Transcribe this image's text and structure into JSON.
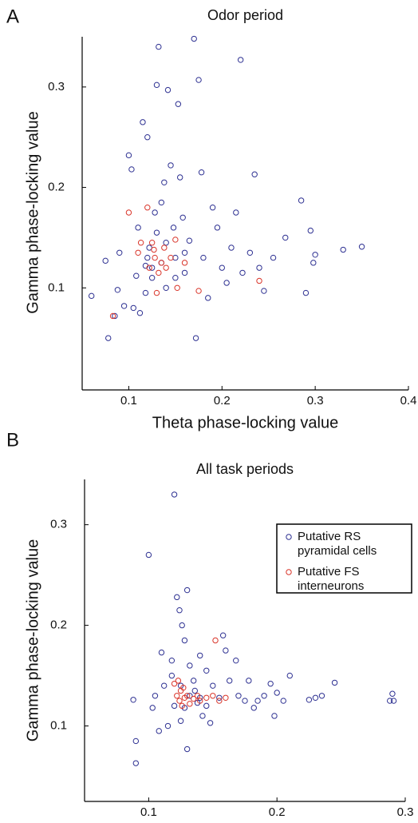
{
  "chart_data": [
    {
      "type": "scatter",
      "panel_label": "A",
      "title": "Odor period",
      "x_label": "Theta phase-locking value",
      "y_label": "Gamma phase-locking value",
      "xlim": [
        0.05,
        0.4
      ],
      "ylim": [
        0,
        0.35
      ],
      "xticks": [
        0.1,
        0.2,
        0.3,
        0.4
      ],
      "yticks": [
        0.1,
        0.2,
        0.3
      ],
      "grid": false,
      "series": [
        {
          "color": "#2e3192",
          "x": [
            0.06,
            0.075,
            0.078,
            0.085,
            0.088,
            0.09,
            0.095,
            0.1,
            0.103,
            0.105,
            0.108,
            0.11,
            0.112,
            0.115,
            0.118,
            0.12,
            0.122,
            0.125,
            0.128,
            0.13,
            0.132,
            0.135,
            0.138,
            0.14,
            0.142,
            0.145,
            0.148,
            0.15,
            0.153,
            0.155,
            0.158,
            0.16,
            0.165,
            0.17,
            0.172,
            0.175,
            0.178,
            0.18,
            0.185,
            0.19,
            0.195,
            0.2,
            0.205,
            0.21,
            0.215,
            0.22,
            0.222,
            0.23,
            0.235,
            0.24,
            0.245,
            0.255,
            0.268,
            0.285,
            0.29,
            0.295,
            0.298,
            0.3,
            0.33,
            0.35,
            0.12,
            0.125,
            0.135,
            0.14,
            0.15,
            0.16,
            0.13,
            0.118
          ],
          "y": [
            0.092,
            0.127,
            0.05,
            0.072,
            0.098,
            0.135,
            0.082,
            0.232,
            0.218,
            0.08,
            0.112,
            0.16,
            0.075,
            0.265,
            0.095,
            0.25,
            0.14,
            0.12,
            0.175,
            0.302,
            0.34,
            0.185,
            0.205,
            0.1,
            0.297,
            0.222,
            0.16,
            0.13,
            0.283,
            0.21,
            0.17,
            0.115,
            0.147,
            0.348,
            0.05,
            0.307,
            0.215,
            0.13,
            0.09,
            0.18,
            0.16,
            0.12,
            0.105,
            0.14,
            0.175,
            0.327,
            0.115,
            0.135,
            0.213,
            0.12,
            0.097,
            0.13,
            0.15,
            0.187,
            0.095,
            0.157,
            0.125,
            0.133,
            0.138,
            0.141,
            0.13,
            0.11,
            0.125,
            0.145,
            0.11,
            0.135,
            0.155,
            0.122
          ]
        },
        {
          "color": "#d9352a",
          "x": [
            0.083,
            0.1,
            0.11,
            0.12,
            0.122,
            0.125,
            0.128,
            0.13,
            0.132,
            0.135,
            0.138,
            0.14,
            0.145,
            0.15,
            0.152,
            0.16,
            0.175,
            0.24,
            0.113,
            0.127
          ],
          "y": [
            0.072,
            0.175,
            0.135,
            0.18,
            0.12,
            0.145,
            0.13,
            0.095,
            0.115,
            0.125,
            0.14,
            0.12,
            0.13,
            0.148,
            0.1,
            0.125,
            0.097,
            0.107,
            0.145,
            0.138
          ]
        }
      ]
    },
    {
      "type": "scatter",
      "panel_label": "B",
      "title": "All task periods",
      "x_label": "Theta phase-locking value",
      "y_label": "Gamma phase-locking value",
      "xlim": [
        0.05,
        0.3
      ],
      "ylim": [
        0.025,
        0.345
      ],
      "xticks": [
        0.1,
        0.2,
        0.3
      ],
      "yticks": [
        0.1,
        0.2,
        0.3
      ],
      "grid": false,
      "legend": "upper right",
      "series": [
        {
          "name": "Putative RS pyramidal cells",
          "color": "#2e3192",
          "x": [
            0.088,
            0.09,
            0.09,
            0.1,
            0.103,
            0.105,
            0.108,
            0.11,
            0.112,
            0.115,
            0.118,
            0.12,
            0.122,
            0.124,
            0.126,
            0.128,
            0.13,
            0.13,
            0.132,
            0.135,
            0.138,
            0.14,
            0.142,
            0.145,
            0.148,
            0.15,
            0.155,
            0.158,
            0.16,
            0.163,
            0.168,
            0.17,
            0.175,
            0.178,
            0.182,
            0.185,
            0.19,
            0.195,
            0.198,
            0.2,
            0.205,
            0.21,
            0.225,
            0.23,
            0.235,
            0.245,
            0.288,
            0.29,
            0.291,
            0.12,
            0.125,
            0.128,
            0.132,
            0.136,
            0.14,
            0.145,
            0.125,
            0.118
          ],
          "y": [
            0.126,
            0.085,
            0.063,
            0.27,
            0.118,
            0.13,
            0.095,
            0.173,
            0.14,
            0.1,
            0.165,
            0.33,
            0.228,
            0.215,
            0.2,
            0.185,
            0.235,
            0.077,
            0.16,
            0.145,
            0.123,
            0.17,
            0.11,
            0.155,
            0.103,
            0.14,
            0.128,
            0.19,
            0.175,
            0.145,
            0.165,
            0.13,
            0.125,
            0.145,
            0.118,
            0.125,
            0.13,
            0.142,
            0.11,
            0.133,
            0.125,
            0.15,
            0.126,
            0.128,
            0.13,
            0.143,
            0.125,
            0.132,
            0.125,
            0.12,
            0.14,
            0.118,
            0.13,
            0.135,
            0.128,
            0.12,
            0.105,
            0.15
          ]
        },
        {
          "name": "Putative FS interneurons",
          "color": "#d9352a",
          "x": [
            0.12,
            0.122,
            0.124,
            0.125,
            0.126,
            0.128,
            0.13,
            0.132,
            0.135,
            0.138,
            0.14,
            0.145,
            0.15,
            0.152,
            0.155,
            0.16,
            0.127,
            0.123
          ],
          "y": [
            0.142,
            0.13,
            0.125,
            0.135,
            0.12,
            0.128,
            0.13,
            0.122,
            0.127,
            0.13,
            0.125,
            0.128,
            0.13,
            0.185,
            0.125,
            0.128,
            0.138,
            0.145
          ]
        }
      ]
    }
  ]
}
